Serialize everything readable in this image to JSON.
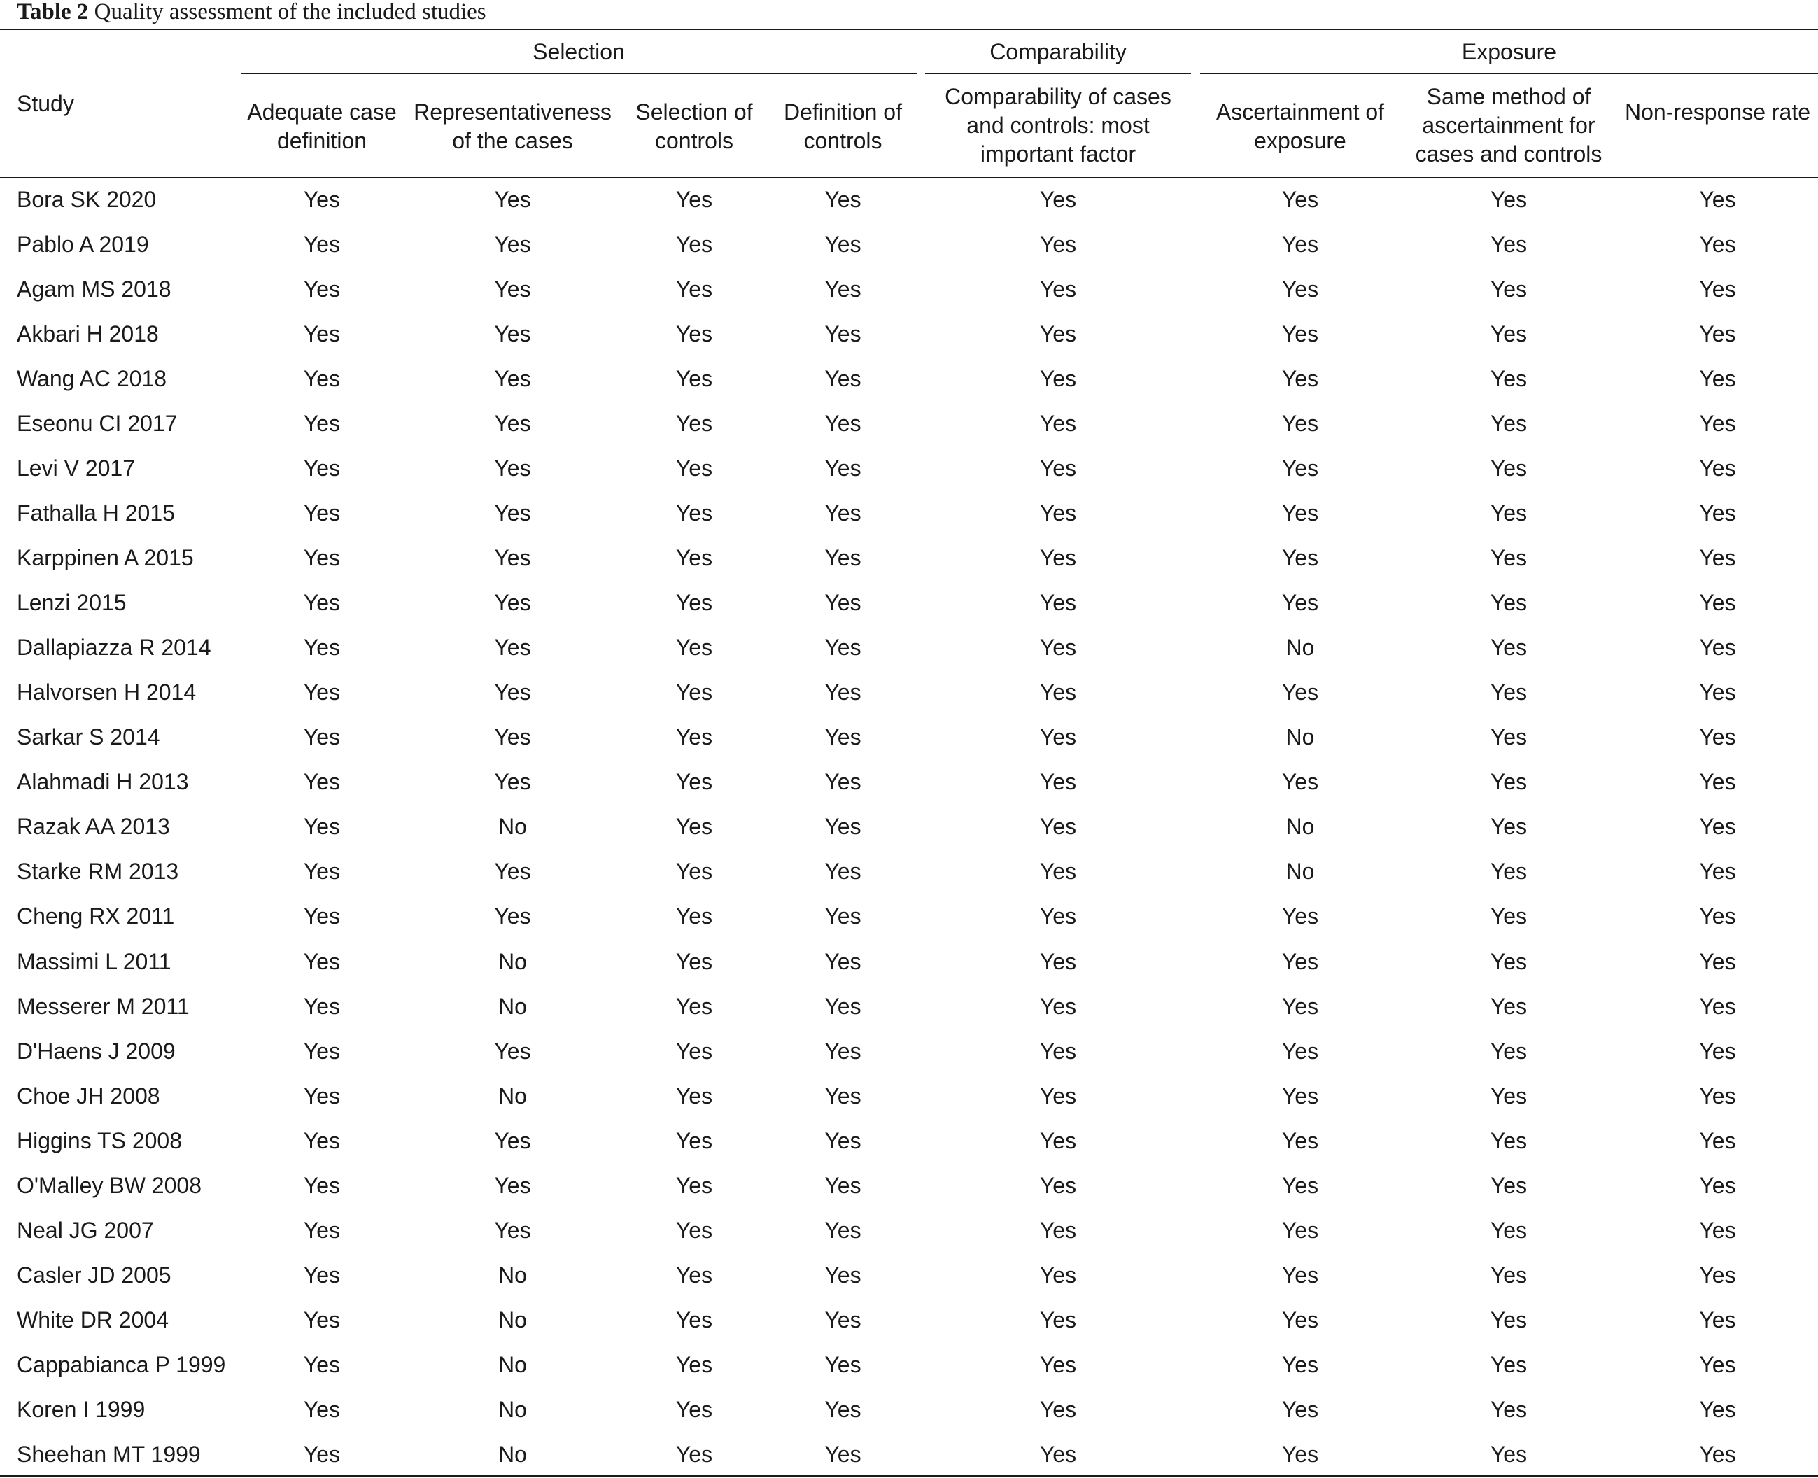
{
  "caption": {
    "label": "Table 2",
    "text": "Quality assessment of the included studies"
  },
  "table": {
    "groups": [
      "Selection",
      "Comparability",
      "Exposure"
    ],
    "columns": [
      "Study",
      "Adequate case definition",
      "Representativeness of the cases",
      "Selection of controls",
      "Definition of controls",
      "Comparability of cases and controls: most important factor",
      "Ascertainment of exposure",
      "Same method of ascertainment for cases and controls",
      "Non-response rate"
    ],
    "rows": [
      [
        "Bora SK 2020",
        "Yes",
        "Yes",
        "Yes",
        "Yes",
        "Yes",
        "Yes",
        "Yes",
        "Yes"
      ],
      [
        "Pablo A 2019",
        "Yes",
        "Yes",
        "Yes",
        "Yes",
        "Yes",
        "Yes",
        "Yes",
        "Yes"
      ],
      [
        "Agam MS 2018",
        "Yes",
        "Yes",
        "Yes",
        "Yes",
        "Yes",
        "Yes",
        "Yes",
        "Yes"
      ],
      [
        "Akbari H 2018",
        "Yes",
        "Yes",
        "Yes",
        "Yes",
        "Yes",
        "Yes",
        "Yes",
        "Yes"
      ],
      [
        "Wang AC 2018",
        "Yes",
        "Yes",
        "Yes",
        "Yes",
        "Yes",
        "Yes",
        "Yes",
        "Yes"
      ],
      [
        "Eseonu CI 2017",
        "Yes",
        "Yes",
        "Yes",
        "Yes",
        "Yes",
        "Yes",
        "Yes",
        "Yes"
      ],
      [
        "Levi V 2017",
        "Yes",
        "Yes",
        "Yes",
        "Yes",
        "Yes",
        "Yes",
        "Yes",
        "Yes"
      ],
      [
        "Fathalla H 2015",
        "Yes",
        "Yes",
        "Yes",
        "Yes",
        "Yes",
        "Yes",
        "Yes",
        "Yes"
      ],
      [
        "Karppinen A 2015",
        "Yes",
        "Yes",
        "Yes",
        "Yes",
        "Yes",
        "Yes",
        "Yes",
        "Yes"
      ],
      [
        "Lenzi 2015",
        "Yes",
        "Yes",
        "Yes",
        "Yes",
        "Yes",
        "Yes",
        "Yes",
        "Yes"
      ],
      [
        "Dallapiazza R 2014",
        "Yes",
        "Yes",
        "Yes",
        "Yes",
        "Yes",
        "No",
        "Yes",
        "Yes"
      ],
      [
        "Halvorsen H 2014",
        "Yes",
        "Yes",
        "Yes",
        "Yes",
        "Yes",
        "Yes",
        "Yes",
        "Yes"
      ],
      [
        "Sarkar S 2014",
        "Yes",
        "Yes",
        "Yes",
        "Yes",
        "Yes",
        "No",
        "Yes",
        "Yes"
      ],
      [
        "Alahmadi H 2013",
        "Yes",
        "Yes",
        "Yes",
        "Yes",
        "Yes",
        "Yes",
        "Yes",
        "Yes"
      ],
      [
        "Razak AA 2013",
        "Yes",
        "No",
        "Yes",
        "Yes",
        "Yes",
        "No",
        "Yes",
        "Yes"
      ],
      [
        "Starke RM 2013",
        "Yes",
        "Yes",
        "Yes",
        "Yes",
        "Yes",
        "No",
        "Yes",
        "Yes"
      ],
      [
        "Cheng RX 2011",
        "Yes",
        "Yes",
        "Yes",
        "Yes",
        "Yes",
        "Yes",
        "Yes",
        "Yes"
      ],
      [
        "Massimi L 2011",
        "Yes",
        "No",
        "Yes",
        "Yes",
        "Yes",
        "Yes",
        "Yes",
        "Yes"
      ],
      [
        "Messerer M 2011",
        "Yes",
        "No",
        "Yes",
        "Yes",
        "Yes",
        "Yes",
        "Yes",
        "Yes"
      ],
      [
        "D'Haens J 2009",
        "Yes",
        "Yes",
        "Yes",
        "Yes",
        "Yes",
        "Yes",
        "Yes",
        "Yes"
      ],
      [
        "Choe JH 2008",
        "Yes",
        "No",
        "Yes",
        "Yes",
        "Yes",
        "Yes",
        "Yes",
        "Yes"
      ],
      [
        "Higgins TS 2008",
        "Yes",
        "Yes",
        "Yes",
        "Yes",
        "Yes",
        "Yes",
        "Yes",
        "Yes"
      ],
      [
        "O'Malley BW 2008",
        "Yes",
        "Yes",
        "Yes",
        "Yes",
        "Yes",
        "Yes",
        "Yes",
        "Yes"
      ],
      [
        "Neal JG 2007",
        "Yes",
        "Yes",
        "Yes",
        "Yes",
        "Yes",
        "Yes",
        "Yes",
        "Yes"
      ],
      [
        "Casler JD 2005",
        "Yes",
        "No",
        "Yes",
        "Yes",
        "Yes",
        "Yes",
        "Yes",
        "Yes"
      ],
      [
        "White DR 2004",
        "Yes",
        "No",
        "Yes",
        "Yes",
        "Yes",
        "Yes",
        "Yes",
        "Yes"
      ],
      [
        "Cappabianca P 1999",
        "Yes",
        "No",
        "Yes",
        "Yes",
        "Yes",
        "Yes",
        "Yes",
        "Yes"
      ],
      [
        "Koren I 1999",
        "Yes",
        "No",
        "Yes",
        "Yes",
        "Yes",
        "Yes",
        "Yes",
        "Yes"
      ],
      [
        "Sheehan MT 1999",
        "Yes",
        "No",
        "Yes",
        "Yes",
        "Yes",
        "Yes",
        "Yes",
        "Yes"
      ]
    ]
  }
}
